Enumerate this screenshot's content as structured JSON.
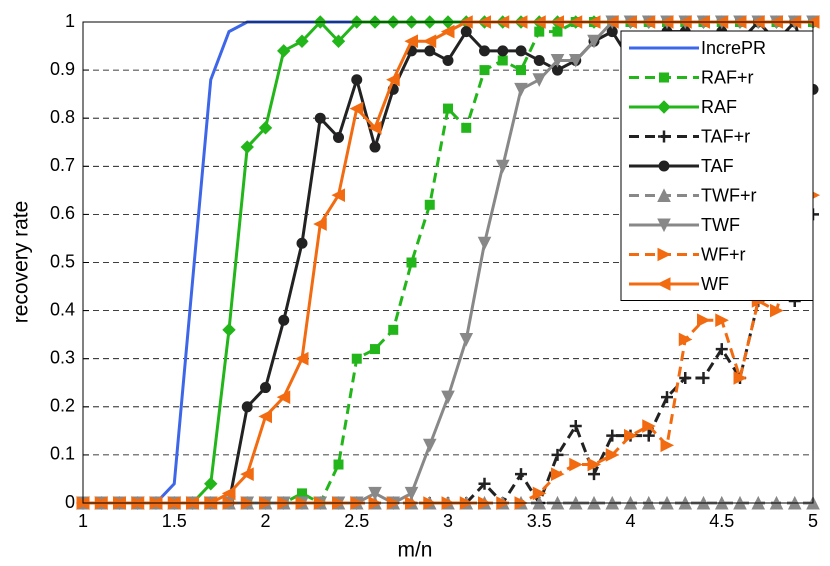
{
  "chart_data": {
    "type": "line",
    "x_label": "m/n",
    "y_label": "recovery rate",
    "x": [
      1,
      1.1,
      1.2,
      1.3,
      1.4,
      1.5,
      1.6,
      1.7,
      1.8,
      1.9,
      2,
      2.1,
      2.2,
      2.3,
      2.4,
      2.5,
      2.6,
      2.7,
      2.8,
      2.9,
      3,
      3.1,
      3.2,
      3.3,
      3.4,
      3.5,
      3.6,
      3.7,
      3.8,
      3.9,
      4,
      4.1,
      4.2,
      4.3,
      4.4,
      4.5,
      4.6,
      4.7,
      4.8,
      4.9,
      5
    ],
    "xlim": [
      1,
      5
    ],
    "xticks": [
      1,
      1.5,
      2,
      2.5,
      3,
      3.5,
      4,
      4.5,
      5
    ],
    "ylim": [
      0,
      1
    ],
    "yticks": [
      0,
      0.1,
      0.2,
      0.3,
      0.4,
      0.5,
      0.6,
      0.7,
      0.8,
      0.9,
      1
    ],
    "grid": true,
    "legend_position": "upper right",
    "series": [
      {
        "name": "IncrePR",
        "color": "#3d67e8",
        "marker": "none",
        "dashed": false,
        "values": [
          0,
          0,
          0,
          0,
          0,
          0.04,
          0.46,
          0.88,
          0.98,
          1,
          1,
          1,
          1,
          1,
          1,
          1,
          1,
          1,
          1,
          1,
          1,
          1,
          1,
          1,
          1,
          1,
          1,
          1,
          1,
          1,
          1,
          1,
          1,
          1,
          1,
          1,
          1,
          1,
          1,
          1,
          1
        ]
      },
      {
        "name": "RAF+r",
        "color": "#22b61a",
        "marker": "square",
        "dashed": true,
        "values": [
          0,
          0,
          0,
          0,
          0,
          0,
          0,
          0,
          0,
          0,
          0,
          0,
          0.02,
          0,
          0.08,
          0.3,
          0.32,
          0.36,
          0.5,
          0.62,
          0.82,
          0.78,
          0.9,
          0.92,
          0.9,
          0.98,
          0.98,
          1,
          1,
          1,
          1,
          1,
          1,
          1,
          1,
          1,
          1,
          1,
          1,
          1,
          1
        ]
      },
      {
        "name": "RAF",
        "color": "#22b61a",
        "marker": "diamond",
        "dashed": false,
        "values": [
          0,
          0,
          0,
          0,
          0,
          0,
          0,
          0.04,
          0.36,
          0.74,
          0.78,
          0.94,
          0.96,
          1,
          0.96,
          1,
          1,
          1,
          1,
          1,
          1,
          1,
          1,
          1,
          1,
          1,
          1,
          1,
          1,
          1,
          1,
          1,
          1,
          1,
          1,
          1,
          1,
          1,
          1,
          1,
          1
        ]
      },
      {
        "name": "TAF+r",
        "color": "#222222",
        "marker": "plus",
        "dashed": true,
        "values": [
          0,
          0,
          0,
          0,
          0,
          0,
          0,
          0,
          0,
          0,
          0,
          0,
          0,
          0,
          0,
          0,
          0,
          0,
          0,
          0,
          0,
          0,
          0.04,
          0,
          0.06,
          0,
          0.1,
          0.16,
          0.06,
          0.14,
          0.14,
          0.14,
          0.22,
          0.26,
          0.26,
          0.32,
          0.26,
          0.42,
          0.44,
          0.42,
          0.6
        ]
      },
      {
        "name": "TAF",
        "color": "#222222",
        "marker": "circle",
        "dashed": false,
        "values": [
          0,
          0,
          0,
          0,
          0,
          0,
          0,
          0,
          0,
          0.2,
          0.24,
          0.38,
          0.54,
          0.8,
          0.76,
          0.88,
          0.74,
          0.86,
          0.94,
          0.94,
          0.92,
          0.98,
          0.94,
          0.94,
          0.94,
          0.92,
          0.9,
          0.92,
          0.96,
          0.98,
          0.92,
          0.92,
          0.98,
          0.98,
          0.96,
          0.98,
          0.96,
          1,
          0.96,
          1,
          0.86
        ]
      },
      {
        "name": "TWF+r",
        "color": "#888888",
        "marker": "triangle-up",
        "dashed": true,
        "values": [
          0,
          0,
          0,
          0,
          0,
          0,
          0,
          0,
          0,
          0,
          0,
          0,
          0,
          0,
          0,
          0,
          0,
          0,
          0,
          0,
          0,
          0,
          0,
          0,
          0,
          0,
          0,
          0,
          0,
          0,
          0,
          0,
          0,
          0,
          0,
          0,
          0,
          0,
          0,
          0,
          0
        ]
      },
      {
        "name": "TWF",
        "color": "#888888",
        "marker": "triangle-down",
        "dashed": false,
        "values": [
          0,
          0,
          0,
          0,
          0,
          0,
          0,
          0,
          0,
          0,
          0,
          0,
          0,
          0,
          0,
          0,
          0.02,
          0,
          0.02,
          0.12,
          0.22,
          0.34,
          0.54,
          0.7,
          0.86,
          0.88,
          0.92,
          0.92,
          0.96,
          1,
          1,
          1,
          1,
          1,
          1,
          1,
          1,
          1,
          1,
          1,
          1
        ]
      },
      {
        "name": "WF+r",
        "color": "#f26b11",
        "marker": "triangle-right",
        "dashed": true,
        "values": [
          0,
          0,
          0,
          0,
          0,
          0,
          0,
          0,
          0,
          0,
          0,
          0,
          0,
          0,
          0,
          0,
          0,
          0,
          0,
          0,
          0,
          0,
          0,
          0,
          0,
          0.02,
          0.06,
          0.08,
          0.08,
          0.1,
          0.14,
          0.16,
          0.12,
          0.34,
          0.38,
          0.38,
          0.26,
          0.42,
          0.4,
          0.54,
          0.64
        ]
      },
      {
        "name": "WF",
        "color": "#f26b11",
        "marker": "triangle-left",
        "dashed": false,
        "values": [
          0,
          0,
          0,
          0,
          0,
          0,
          0,
          0,
          0.02,
          0.06,
          0.18,
          0.22,
          0.3,
          0.58,
          0.64,
          0.82,
          0.78,
          0.88,
          0.96,
          0.96,
          0.98,
          1,
          1,
          1,
          1,
          1,
          1,
          1,
          1,
          1,
          1,
          1,
          1,
          1,
          1,
          1,
          1,
          1,
          1,
          1,
          1
        ]
      }
    ]
  }
}
